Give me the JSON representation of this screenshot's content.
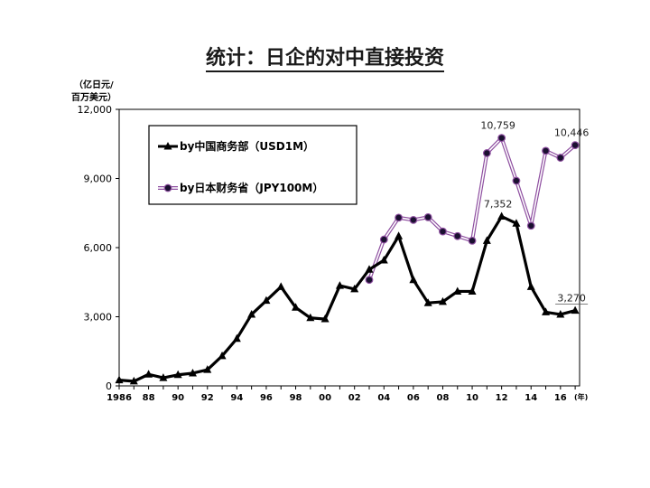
{
  "title": "统计：日企的对中直接投资",
  "chart_data": {
    "type": "line",
    "ylabel_line1": "（亿日元/",
    "ylabel_line2": "百万美元）",
    "xunit": "(年)",
    "ylim": [
      0,
      12000
    ],
    "yticks": [
      "0",
      "3,000",
      "6,000",
      "9,000",
      "12,000"
    ],
    "ytick_values": [
      0,
      3000,
      6000,
      9000,
      12000
    ],
    "xlim": [
      1986,
      2017.3
    ],
    "xticks": [
      "1986",
      "88",
      "90",
      "92",
      "94",
      "96",
      "98",
      "00",
      "02",
      "04",
      "06",
      "08",
      "10",
      "12",
      "14",
      "16"
    ],
    "xtick_values": [
      1986,
      1988,
      1990,
      1992,
      1994,
      1996,
      1998,
      2000,
      2002,
      2004,
      2006,
      2008,
      2010,
      2012,
      2014,
      2016
    ],
    "legend_position": "top-left",
    "series": [
      {
        "name": "by中国商务部（USD1M）",
        "marker": "triangle",
        "color": "#000000",
        "x": [
          1986,
          1987,
          1988,
          1989,
          1990,
          1991,
          1992,
          1993,
          1994,
          1995,
          1996,
          1997,
          1998,
          1999,
          2000,
          2001,
          2002,
          2003,
          2004,
          2005,
          2006,
          2007,
          2008,
          2009,
          2010,
          2011,
          2012,
          2013,
          2014,
          2015,
          2016,
          2017
        ],
        "values": [
          250,
          200,
          500,
          350,
          480,
          550,
          700,
          1300,
          2050,
          3100,
          3700,
          4300,
          3400,
          2950,
          2900,
          4350,
          4200,
          5050,
          5450,
          6500,
          4600,
          3600,
          3650,
          4100,
          4100,
          6300,
          7352,
          7050,
          4300,
          3200,
          3100,
          3270
        ]
      },
      {
        "name": "by日本财务省（JPY100M）",
        "marker": "circle",
        "color": "#8e4fa0",
        "x": [
          2003,
          2004,
          2005,
          2006,
          2007,
          2008,
          2009,
          2010,
          2011,
          2012,
          2013,
          2014,
          2015,
          2016,
          2017
        ],
        "values": [
          4600,
          6350,
          7300,
          7200,
          7320,
          6700,
          6500,
          6300,
          10100,
          10759,
          8900,
          6950,
          10200,
          9900,
          10446
        ]
      }
    ],
    "annotations": [
      {
        "text": "10,759",
        "x": 2012,
        "y": 10759
      },
      {
        "text": "10,446",
        "x": 2017,
        "y": 10446
      },
      {
        "text": "7,352",
        "x": 2012,
        "y": 7352
      },
      {
        "text": "3,270",
        "x": 2017,
        "y": 3270
      }
    ]
  }
}
